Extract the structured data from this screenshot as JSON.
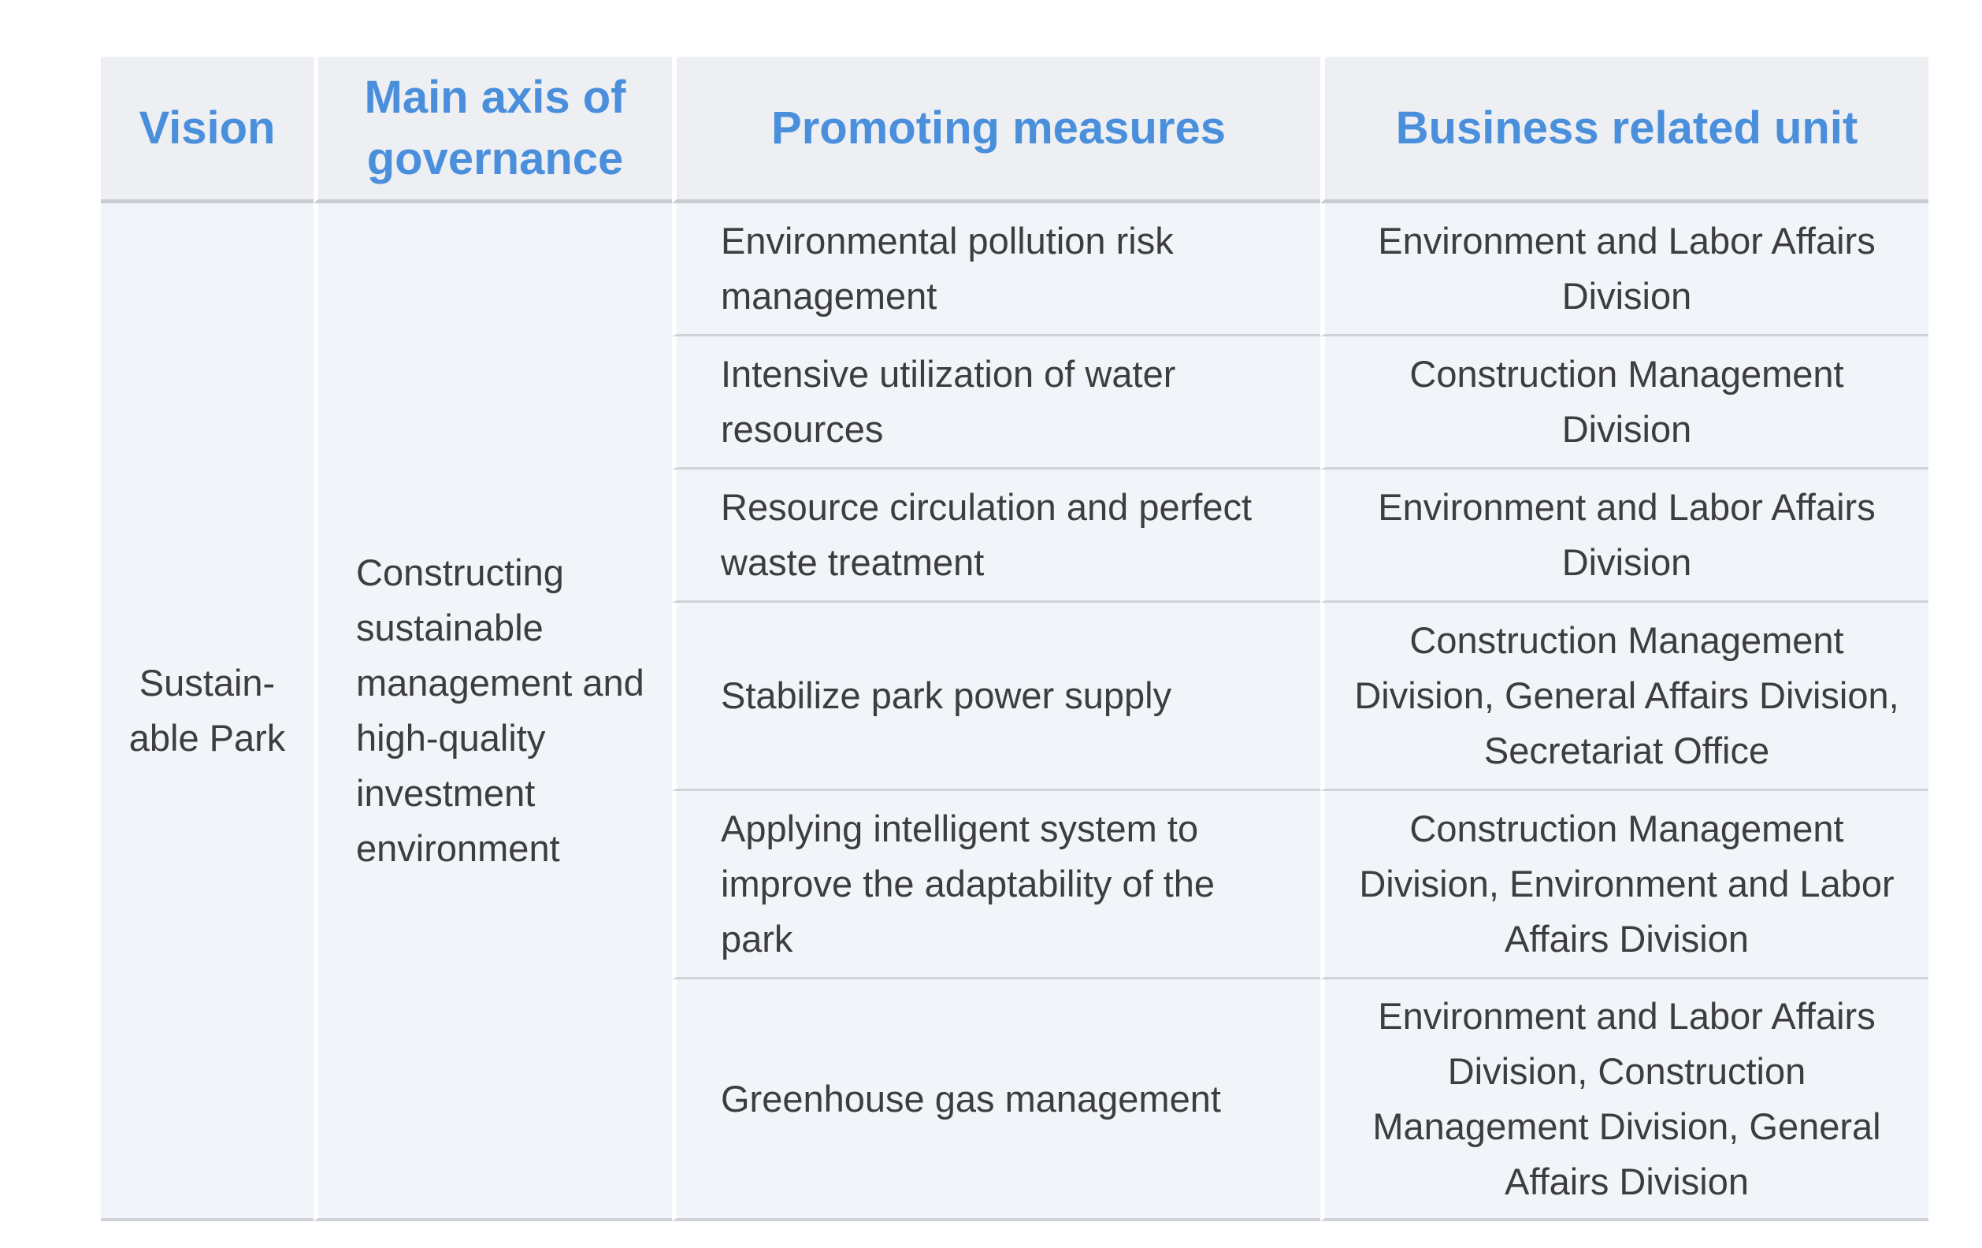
{
  "table": {
    "headers": {
      "vision": "Vision",
      "main_axis": "Main axis of governance",
      "measures": "Promoting measures",
      "unit": "Business related unit"
    },
    "vision": "Sustain-able Park",
    "main_axis": "Constructing sustainable management and high-quality investment environment",
    "rows": [
      {
        "measure": "Environmental pollution risk management",
        "unit": "Environment and Labor Affairs Division"
      },
      {
        "measure": "Intensive utilization of water resources",
        "unit": "Construction Management Division"
      },
      {
        "measure": "Resource circulation and perfect waste treatment",
        "unit": "Environment and Labor Affairs Division"
      },
      {
        "measure": "Stabilize park power supply",
        "unit": "Construction Management Division, General Affairs Division, Secretariat Office"
      },
      {
        "measure": "Applying intelligent system to improve the adaptability of the park",
        "unit": "Construction Management Division, Environment and Labor Affairs Division"
      },
      {
        "measure": "Greenhouse gas management",
        "unit": "Environment and Labor Affairs Division, Construction Management Division, General Affairs Division"
      }
    ]
  }
}
